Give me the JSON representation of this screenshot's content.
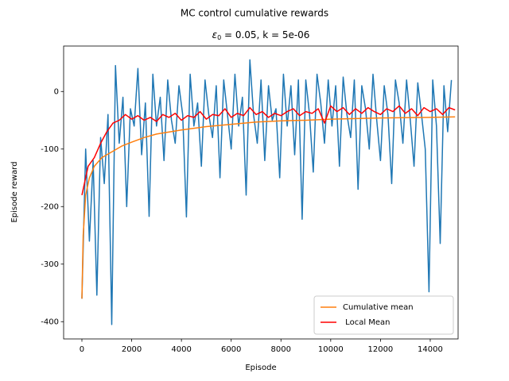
{
  "chart_data": {
    "type": "line",
    "suptitle": "MC control cumulative rewards",
    "title": {
      "symbol": "ε",
      "subscript": "0",
      "rest": " = 0.05, k = 5e-06"
    },
    "x_label": "Episode",
    "y_label": "Episode reward",
    "xlim": [
      -735,
      15120
    ],
    "ylim": [
      -430,
      79
    ],
    "xticks": [
      0,
      2000,
      4000,
      6000,
      8000,
      10000,
      12000,
      14000
    ],
    "yticks": [
      -400,
      -300,
      -200,
      -100,
      0
    ],
    "legend": "lower right",
    "series": [
      {
        "color": "#1f77b4",
        "x": [
          0,
          150,
          300,
          450,
          600,
          750,
          900,
          1050,
          1200,
          1350,
          1500,
          1650,
          1800,
          1950,
          2100,
          2250,
          2400,
          2550,
          2700,
          2850,
          3000,
          3150,
          3300,
          3450,
          3600,
          3750,
          3900,
          4050,
          4200,
          4350,
          4500,
          4650,
          4800,
          4950,
          5100,
          5250,
          5400,
          5550,
          5700,
          5850,
          6000,
          6150,
          6300,
          6450,
          6600,
          6750,
          6900,
          7050,
          7200,
          7350,
          7500,
          7650,
          7800,
          7950,
          8100,
          8250,
          8400,
          8550,
          8700,
          8850,
          9000,
          9150,
          9300,
          9450,
          9600,
          9750,
          9900,
          10050,
          10200,
          10350,
          10500,
          10650,
          10800,
          10950,
          11100,
          11250,
          11400,
          11550,
          11700,
          11850,
          12000,
          12150,
          12300,
          12450,
          12600,
          12750,
          12900,
          13050,
          13200,
          13350,
          13500,
          13650,
          13800,
          13950,
          14100,
          14250,
          14400,
          14550,
          14700,
          14850
        ],
        "values": [
          -360,
          -100,
          -260,
          -120,
          -354,
          -80,
          -160,
          -40,
          -405,
          45,
          -90,
          -10,
          -200,
          -30,
          -60,
          40,
          -110,
          -20,
          -217,
          30,
          -60,
          -10,
          -120,
          20,
          -50,
          -90,
          10,
          -40,
          -218,
          30,
          -60,
          -20,
          -130,
          20,
          -40,
          -80,
          10,
          -150,
          20,
          -40,
          -100,
          30,
          -60,
          -10,
          -180,
          55,
          -40,
          -90,
          20,
          -120,
          10,
          -50,
          -30,
          -150,
          30,
          -60,
          10,
          -110,
          20,
          -222,
          20,
          -40,
          -140,
          30,
          -20,
          -90,
          20,
          -60,
          10,
          -130,
          25,
          -40,
          -80,
          20,
          -170,
          10,
          -30,
          -100,
          30,
          -50,
          -120,
          10,
          -40,
          -160,
          20,
          -20,
          -90,
          20,
          -50,
          -130,
          15,
          -40,
          -100,
          -348,
          20,
          -60,
          -264,
          10,
          -70,
          20
        ]
      },
      {
        "name": "Cumulative mean",
        "color": "#ff7f0e",
        "x": [
          0,
          50,
          150,
          300,
          500,
          800,
          1200,
          1600,
          2000,
          2500,
          3000,
          4000,
          5000,
          6000,
          7000,
          8000,
          9000,
          10000,
          12000,
          14000,
          15000
        ],
        "values": [
          -360,
          -250,
          -180,
          -150,
          -130,
          -115,
          -105,
          -95,
          -88,
          -80,
          -74,
          -67,
          -61,
          -57,
          -53,
          -51,
          -50,
          -48,
          -46,
          -45,
          -44
        ]
      },
      {
        "name": " Local Mean",
        "color": "#ff0000",
        "x": [
          0,
          250,
          500,
          750,
          1000,
          1250,
          1500,
          1750,
          2000,
          2250,
          2500,
          2750,
          3000,
          3250,
          3500,
          3750,
          4000,
          4250,
          4500,
          4750,
          5000,
          5250,
          5500,
          5750,
          6000,
          6250,
          6500,
          6750,
          7000,
          7250,
          7500,
          7750,
          8000,
          8250,
          8500,
          8750,
          9000,
          9250,
          9500,
          9750,
          10000,
          10250,
          10500,
          10750,
          11000,
          11250,
          11500,
          11750,
          12000,
          12250,
          12500,
          12750,
          13000,
          13250,
          13500,
          13750,
          14000,
          14250,
          14500,
          14750,
          15000
        ],
        "values": [
          -180,
          -130,
          -115,
          -90,
          -70,
          -55,
          -50,
          -40,
          -48,
          -42,
          -50,
          -45,
          -52,
          -40,
          -45,
          -38,
          -50,
          -42,
          -45,
          -35,
          -48,
          -40,
          -42,
          -30,
          -45,
          -38,
          -42,
          -28,
          -40,
          -35,
          -45,
          -38,
          -42,
          -35,
          -30,
          -42,
          -35,
          -38,
          -30,
          -55,
          -25,
          -35,
          -28,
          -40,
          -30,
          -38,
          -28,
          -35,
          -40,
          -30,
          -35,
          -25,
          -38,
          -30,
          -42,
          -28,
          -35,
          -30,
          -40,
          -28,
          -32
        ]
      }
    ]
  }
}
